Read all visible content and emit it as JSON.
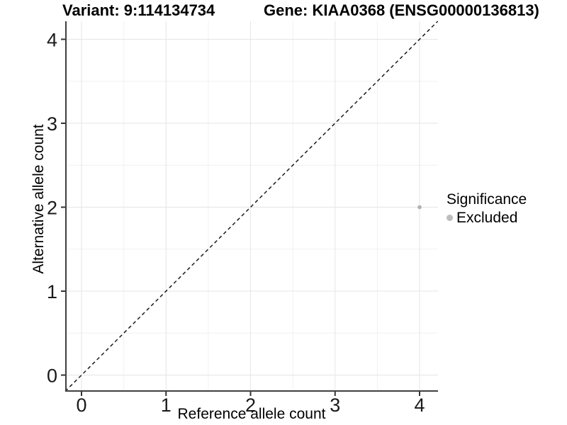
{
  "chart_data": {
    "type": "scatter",
    "titles": {
      "left": "Variant: 9:114134734",
      "right": "Gene: KIAA0368 (ENSG00000136813)"
    },
    "xlabel": "Reference allele count",
    "ylabel": "Alternative allele count",
    "x_ticks": [
      0,
      1,
      2,
      3,
      4
    ],
    "y_ticks": [
      0,
      1,
      2,
      3,
      4
    ],
    "xlim": [
      -0.193,
      4.218
    ],
    "ylim": [
      -0.198,
      4.215
    ],
    "grid": {
      "major": true,
      "minor": true
    },
    "identity_line": {
      "equation": "y = x",
      "style": "dashed",
      "color": "#1a1a1a"
    },
    "series": [
      {
        "name": "Excluded",
        "color": "#b0b0b0",
        "points": [
          [
            4,
            2
          ]
        ]
      }
    ],
    "legend": {
      "title": "Significance",
      "position": "right",
      "items": [
        {
          "label": "Excluded",
          "color": "#bdbdbd"
        }
      ]
    },
    "colors": {
      "grid_major": "#e5e5e5",
      "grid_minor": "#f1f1f1",
      "axis_line": "#404040",
      "tick_mark": "#333333",
      "tick_text": "#1a1a1a",
      "background": "#ffffff"
    }
  }
}
